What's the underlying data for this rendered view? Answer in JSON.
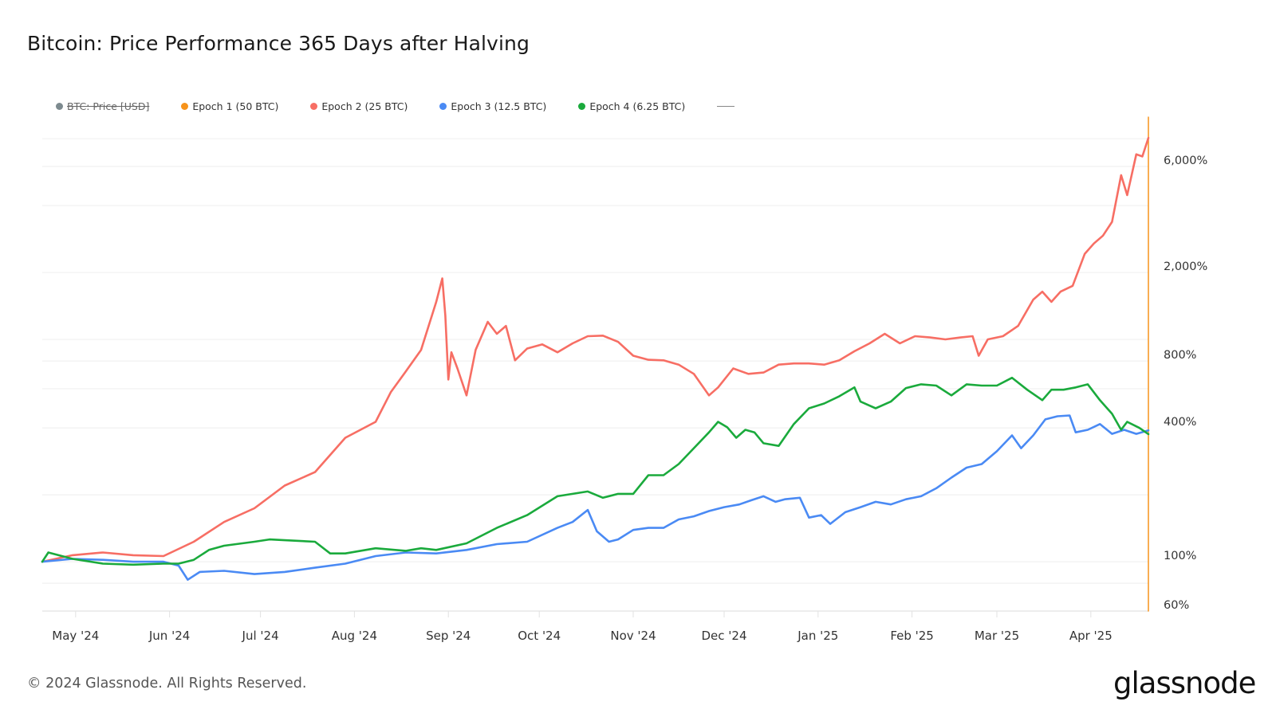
{
  "chart_data": {
    "type": "line",
    "title": "Bitcoin: Price Performance 365 Days after Halving",
    "y_scale": "log",
    "ylim": [
      60,
      10000
    ],
    "xlim": [
      "2024-04-20",
      "2025-04-20"
    ],
    "grid": "horizontal",
    "legend_position": "top-left",
    "y_ticks": [
      {
        "value": 6000,
        "label": "6,000%"
      },
      {
        "value": 2000,
        "label": "2,000%"
      },
      {
        "value": 800,
        "label": "800%"
      },
      {
        "value": 400,
        "label": "400%"
      },
      {
        "value": 100,
        "label": "100%"
      },
      {
        "value": 60,
        "label": "60%"
      }
    ],
    "y_gridlines": [
      60,
      80,
      100,
      200,
      400,
      600,
      800,
      1000,
      2000,
      4000,
      6000,
      8000
    ],
    "x_ticks": [
      {
        "date": "2024-05-01",
        "label": "May '24"
      },
      {
        "date": "2024-06-01",
        "label": "Jun '24"
      },
      {
        "date": "2024-07-01",
        "label": "Jul '24"
      },
      {
        "date": "2024-08-01",
        "label": "Aug '24"
      },
      {
        "date": "2024-09-01",
        "label": "Sep '24"
      },
      {
        "date": "2024-10-01",
        "label": "Oct '24"
      },
      {
        "date": "2024-11-01",
        "label": "Nov '24"
      },
      {
        "date": "2024-12-01",
        "label": "Dec '24"
      },
      {
        "date": "2025-01-01",
        "label": "Jan '25"
      },
      {
        "date": "2025-02-01",
        "label": "Feb '25"
      },
      {
        "date": "2025-03-01",
        "label": "Mar '25"
      },
      {
        "date": "2025-04-01",
        "label": "Apr '25"
      }
    ],
    "legend": [
      {
        "name": "BTC: Price [USD]",
        "color": "#7d8a8f",
        "hidden": true
      },
      {
        "name": "Epoch 1 (50 BTC)",
        "color": "#f7931a",
        "hidden": false
      },
      {
        "name": "Epoch 2 (25 BTC)",
        "color": "#f76e64",
        "hidden": false
      },
      {
        "name": "Epoch 3 (12.5 BTC)",
        "color": "#4a8af4",
        "hidden": false
      },
      {
        "name": "Epoch 4 (6.25 BTC)",
        "color": "#1aaa3c",
        "hidden": false
      }
    ],
    "series": [
      {
        "name": "Epoch 1 (50 BTC)",
        "color": "#f7931a",
        "note_visible_as": "vertical-line-at-end",
        "points": [
          [
            "2025-04-20",
            60
          ],
          [
            "2025-04-20",
            10000
          ]
        ]
      },
      {
        "name": "Epoch 2 (25 BTC)",
        "color": "#f76e64",
        "points": [
          [
            "2024-04-20",
            100
          ],
          [
            "2024-04-30",
            107
          ],
          [
            "2024-05-10",
            110
          ],
          [
            "2024-05-20",
            107
          ],
          [
            "2024-05-30",
            106
          ],
          [
            "2024-06-09",
            123
          ],
          [
            "2024-06-19",
            151
          ],
          [
            "2024-06-29",
            174
          ],
          [
            "2024-07-09",
            220
          ],
          [
            "2024-07-19",
            253
          ],
          [
            "2024-07-29",
            361
          ],
          [
            "2024-08-08",
            426
          ],
          [
            "2024-08-13",
            579
          ],
          [
            "2024-08-18",
            719
          ],
          [
            "2024-08-23",
            897
          ],
          [
            "2024-08-28",
            1476
          ],
          [
            "2024-08-30",
            1880
          ],
          [
            "2024-08-31",
            1280
          ],
          [
            "2024-09-01",
            660
          ],
          [
            "2024-09-02",
            875
          ],
          [
            "2024-09-04",
            740
          ],
          [
            "2024-09-07",
            560
          ],
          [
            "2024-09-10",
            897
          ],
          [
            "2024-09-14",
            1200
          ],
          [
            "2024-09-17",
            1060
          ],
          [
            "2024-09-20",
            1150
          ],
          [
            "2024-09-23",
            805
          ],
          [
            "2024-09-27",
            910
          ],
          [
            "2024-10-02",
            950
          ],
          [
            "2024-10-07",
            875
          ],
          [
            "2024-10-12",
            960
          ],
          [
            "2024-10-17",
            1034
          ],
          [
            "2024-10-22",
            1040
          ],
          [
            "2024-10-27",
            975
          ],
          [
            "2024-11-01",
            845
          ],
          [
            "2024-11-06",
            810
          ],
          [
            "2024-11-11",
            805
          ],
          [
            "2024-11-16",
            770
          ],
          [
            "2024-11-21",
            700
          ],
          [
            "2024-11-26",
            560
          ],
          [
            "2024-11-29",
            608
          ],
          [
            "2024-12-04",
            740
          ],
          [
            "2024-12-09",
            700
          ],
          [
            "2024-12-14",
            710
          ],
          [
            "2024-12-19",
            770
          ],
          [
            "2024-12-24",
            780
          ],
          [
            "2024-12-29",
            780
          ],
          [
            "2025-01-03",
            770
          ],
          [
            "2025-01-08",
            805
          ],
          [
            "2025-01-13",
            885
          ],
          [
            "2025-01-18",
            960
          ],
          [
            "2025-01-23",
            1060
          ],
          [
            "2025-01-28",
            960
          ],
          [
            "2025-02-02",
            1034
          ],
          [
            "2025-02-07",
            1020
          ],
          [
            "2025-02-12",
            1000
          ],
          [
            "2025-02-17",
            1020
          ],
          [
            "2025-02-21",
            1034
          ],
          [
            "2025-02-23",
            845
          ],
          [
            "2025-02-26",
            1000
          ],
          [
            "2025-03-03",
            1034
          ],
          [
            "2025-03-08",
            1150
          ],
          [
            "2025-03-13",
            1510
          ],
          [
            "2025-03-16",
            1640
          ],
          [
            "2025-03-19",
            1476
          ],
          [
            "2025-03-22",
            1640
          ],
          [
            "2025-03-26",
            1742
          ],
          [
            "2025-03-30",
            2427
          ],
          [
            "2025-04-02",
            2700
          ],
          [
            "2025-04-05",
            2930
          ],
          [
            "2025-04-08",
            3380
          ],
          [
            "2025-04-11",
            5480
          ],
          [
            "2025-04-13",
            4460
          ],
          [
            "2025-04-16",
            6800
          ],
          [
            "2025-04-18",
            6650
          ],
          [
            "2025-04-20",
            8060
          ]
        ]
      },
      {
        "name": "Epoch 3 (12.5 BTC)",
        "color": "#4a8af4",
        "points": [
          [
            "2024-04-20",
            100
          ],
          [
            "2024-04-30",
            103
          ],
          [
            "2024-05-10",
            102
          ],
          [
            "2024-05-20",
            100
          ],
          [
            "2024-05-30",
            100
          ],
          [
            "2024-06-04",
            96
          ],
          [
            "2024-06-07",
            83
          ],
          [
            "2024-06-11",
            90
          ],
          [
            "2024-06-19",
            91
          ],
          [
            "2024-06-29",
            88
          ],
          [
            "2024-07-09",
            90
          ],
          [
            "2024-07-19",
            94
          ],
          [
            "2024-07-29",
            98
          ],
          [
            "2024-08-08",
            106
          ],
          [
            "2024-08-18",
            110
          ],
          [
            "2024-08-28",
            109
          ],
          [
            "2024-09-07",
            113
          ],
          [
            "2024-09-17",
            120
          ],
          [
            "2024-09-27",
            123
          ],
          [
            "2024-10-07",
            142
          ],
          [
            "2024-10-12",
            151
          ],
          [
            "2024-10-17",
            171
          ],
          [
            "2024-10-20",
            137
          ],
          [
            "2024-10-24",
            123
          ],
          [
            "2024-10-27",
            126
          ],
          [
            "2024-11-01",
            139
          ],
          [
            "2024-11-06",
            142
          ],
          [
            "2024-11-11",
            142
          ],
          [
            "2024-11-16",
            155
          ],
          [
            "2024-11-21",
            160
          ],
          [
            "2024-11-26",
            169
          ],
          [
            "2024-12-01",
            176
          ],
          [
            "2024-12-06",
            181
          ],
          [
            "2024-12-10",
            189
          ],
          [
            "2024-12-14",
            197
          ],
          [
            "2024-12-18",
            186
          ],
          [
            "2024-12-21",
            191
          ],
          [
            "2024-12-26",
            194
          ],
          [
            "2024-12-29",
            158
          ],
          [
            "2025-01-02",
            162
          ],
          [
            "2025-01-05",
            148
          ],
          [
            "2025-01-10",
            167
          ],
          [
            "2025-01-15",
            176
          ],
          [
            "2025-01-20",
            186
          ],
          [
            "2025-01-25",
            181
          ],
          [
            "2025-01-30",
            191
          ],
          [
            "2025-02-04",
            197
          ],
          [
            "2025-02-09",
            214
          ],
          [
            "2025-02-14",
            239
          ],
          [
            "2025-02-19",
            265
          ],
          [
            "2025-02-24",
            275
          ],
          [
            "2025-03-01",
            314
          ],
          [
            "2025-03-06",
            370
          ],
          [
            "2025-03-09",
            324
          ],
          [
            "2025-03-13",
            370
          ],
          [
            "2025-03-17",
            437
          ],
          [
            "2025-03-21",
            451
          ],
          [
            "2025-03-25",
            455
          ],
          [
            "2025-03-27",
            382
          ],
          [
            "2025-03-31",
            392
          ],
          [
            "2025-04-04",
            416
          ],
          [
            "2025-04-08",
            376
          ],
          [
            "2025-04-12",
            392
          ],
          [
            "2025-04-16",
            376
          ],
          [
            "2025-04-20",
            390
          ]
        ]
      },
      {
        "name": "Epoch 4 (6.25 BTC)",
        "color": "#1aaa3c",
        "points": [
          [
            "2024-04-20",
            100
          ],
          [
            "2024-04-22",
            110
          ],
          [
            "2024-04-30",
            103
          ],
          [
            "2024-05-10",
            98
          ],
          [
            "2024-05-20",
            97
          ],
          [
            "2024-05-30",
            98
          ],
          [
            "2024-06-04",
            98
          ],
          [
            "2024-06-09",
            102
          ],
          [
            "2024-06-14",
            113
          ],
          [
            "2024-06-19",
            118
          ],
          [
            "2024-06-29",
            123
          ],
          [
            "2024-07-04",
            126
          ],
          [
            "2024-07-09",
            125
          ],
          [
            "2024-07-19",
            123
          ],
          [
            "2024-07-24",
            109
          ],
          [
            "2024-07-29",
            109
          ],
          [
            "2024-08-08",
            115
          ],
          [
            "2024-08-18",
            112
          ],
          [
            "2024-08-23",
            115
          ],
          [
            "2024-08-28",
            113
          ],
          [
            "2024-09-07",
            121
          ],
          [
            "2024-09-17",
            142
          ],
          [
            "2024-09-27",
            162
          ],
          [
            "2024-10-07",
            197
          ],
          [
            "2024-10-12",
            202
          ],
          [
            "2024-10-17",
            207
          ],
          [
            "2024-10-22",
            194
          ],
          [
            "2024-10-27",
            202
          ],
          [
            "2024-11-01",
            202
          ],
          [
            "2024-11-06",
            245
          ],
          [
            "2024-11-11",
            245
          ],
          [
            "2024-11-16",
            275
          ],
          [
            "2024-11-21",
            324
          ],
          [
            "2024-11-26",
            382
          ],
          [
            "2024-11-29",
            426
          ],
          [
            "2024-12-02",
            403
          ],
          [
            "2024-12-05",
            361
          ],
          [
            "2024-12-08",
            392
          ],
          [
            "2024-12-11",
            382
          ],
          [
            "2024-12-14",
            341
          ],
          [
            "2024-12-19",
            332
          ],
          [
            "2024-12-24",
            416
          ],
          [
            "2024-12-29",
            490
          ],
          [
            "2025-01-03",
            515
          ],
          [
            "2025-01-08",
            555
          ],
          [
            "2025-01-13",
            608
          ],
          [
            "2025-01-15",
            525
          ],
          [
            "2025-01-20",
            490
          ],
          [
            "2025-01-25",
            525
          ],
          [
            "2025-01-30",
            604
          ],
          [
            "2025-02-04",
            628
          ],
          [
            "2025-02-09",
            620
          ],
          [
            "2025-02-14",
            560
          ],
          [
            "2025-02-19",
            628
          ],
          [
            "2025-02-24",
            620
          ],
          [
            "2025-03-01",
            620
          ],
          [
            "2025-03-06",
            672
          ],
          [
            "2025-03-11",
            594
          ],
          [
            "2025-03-16",
            533
          ],
          [
            "2025-03-19",
            594
          ],
          [
            "2025-03-23",
            594
          ],
          [
            "2025-03-27",
            608
          ],
          [
            "2025-03-31",
            628
          ],
          [
            "2025-04-04",
            533
          ],
          [
            "2025-04-08",
            463
          ],
          [
            "2025-04-11",
            392
          ],
          [
            "2025-04-13",
            426
          ],
          [
            "2025-04-17",
            400
          ],
          [
            "2025-04-20",
            375
          ]
        ]
      }
    ]
  },
  "footer": {
    "copyright": "© 2024 Glassnode. All Rights Reserved.",
    "logo": "glassnode"
  }
}
